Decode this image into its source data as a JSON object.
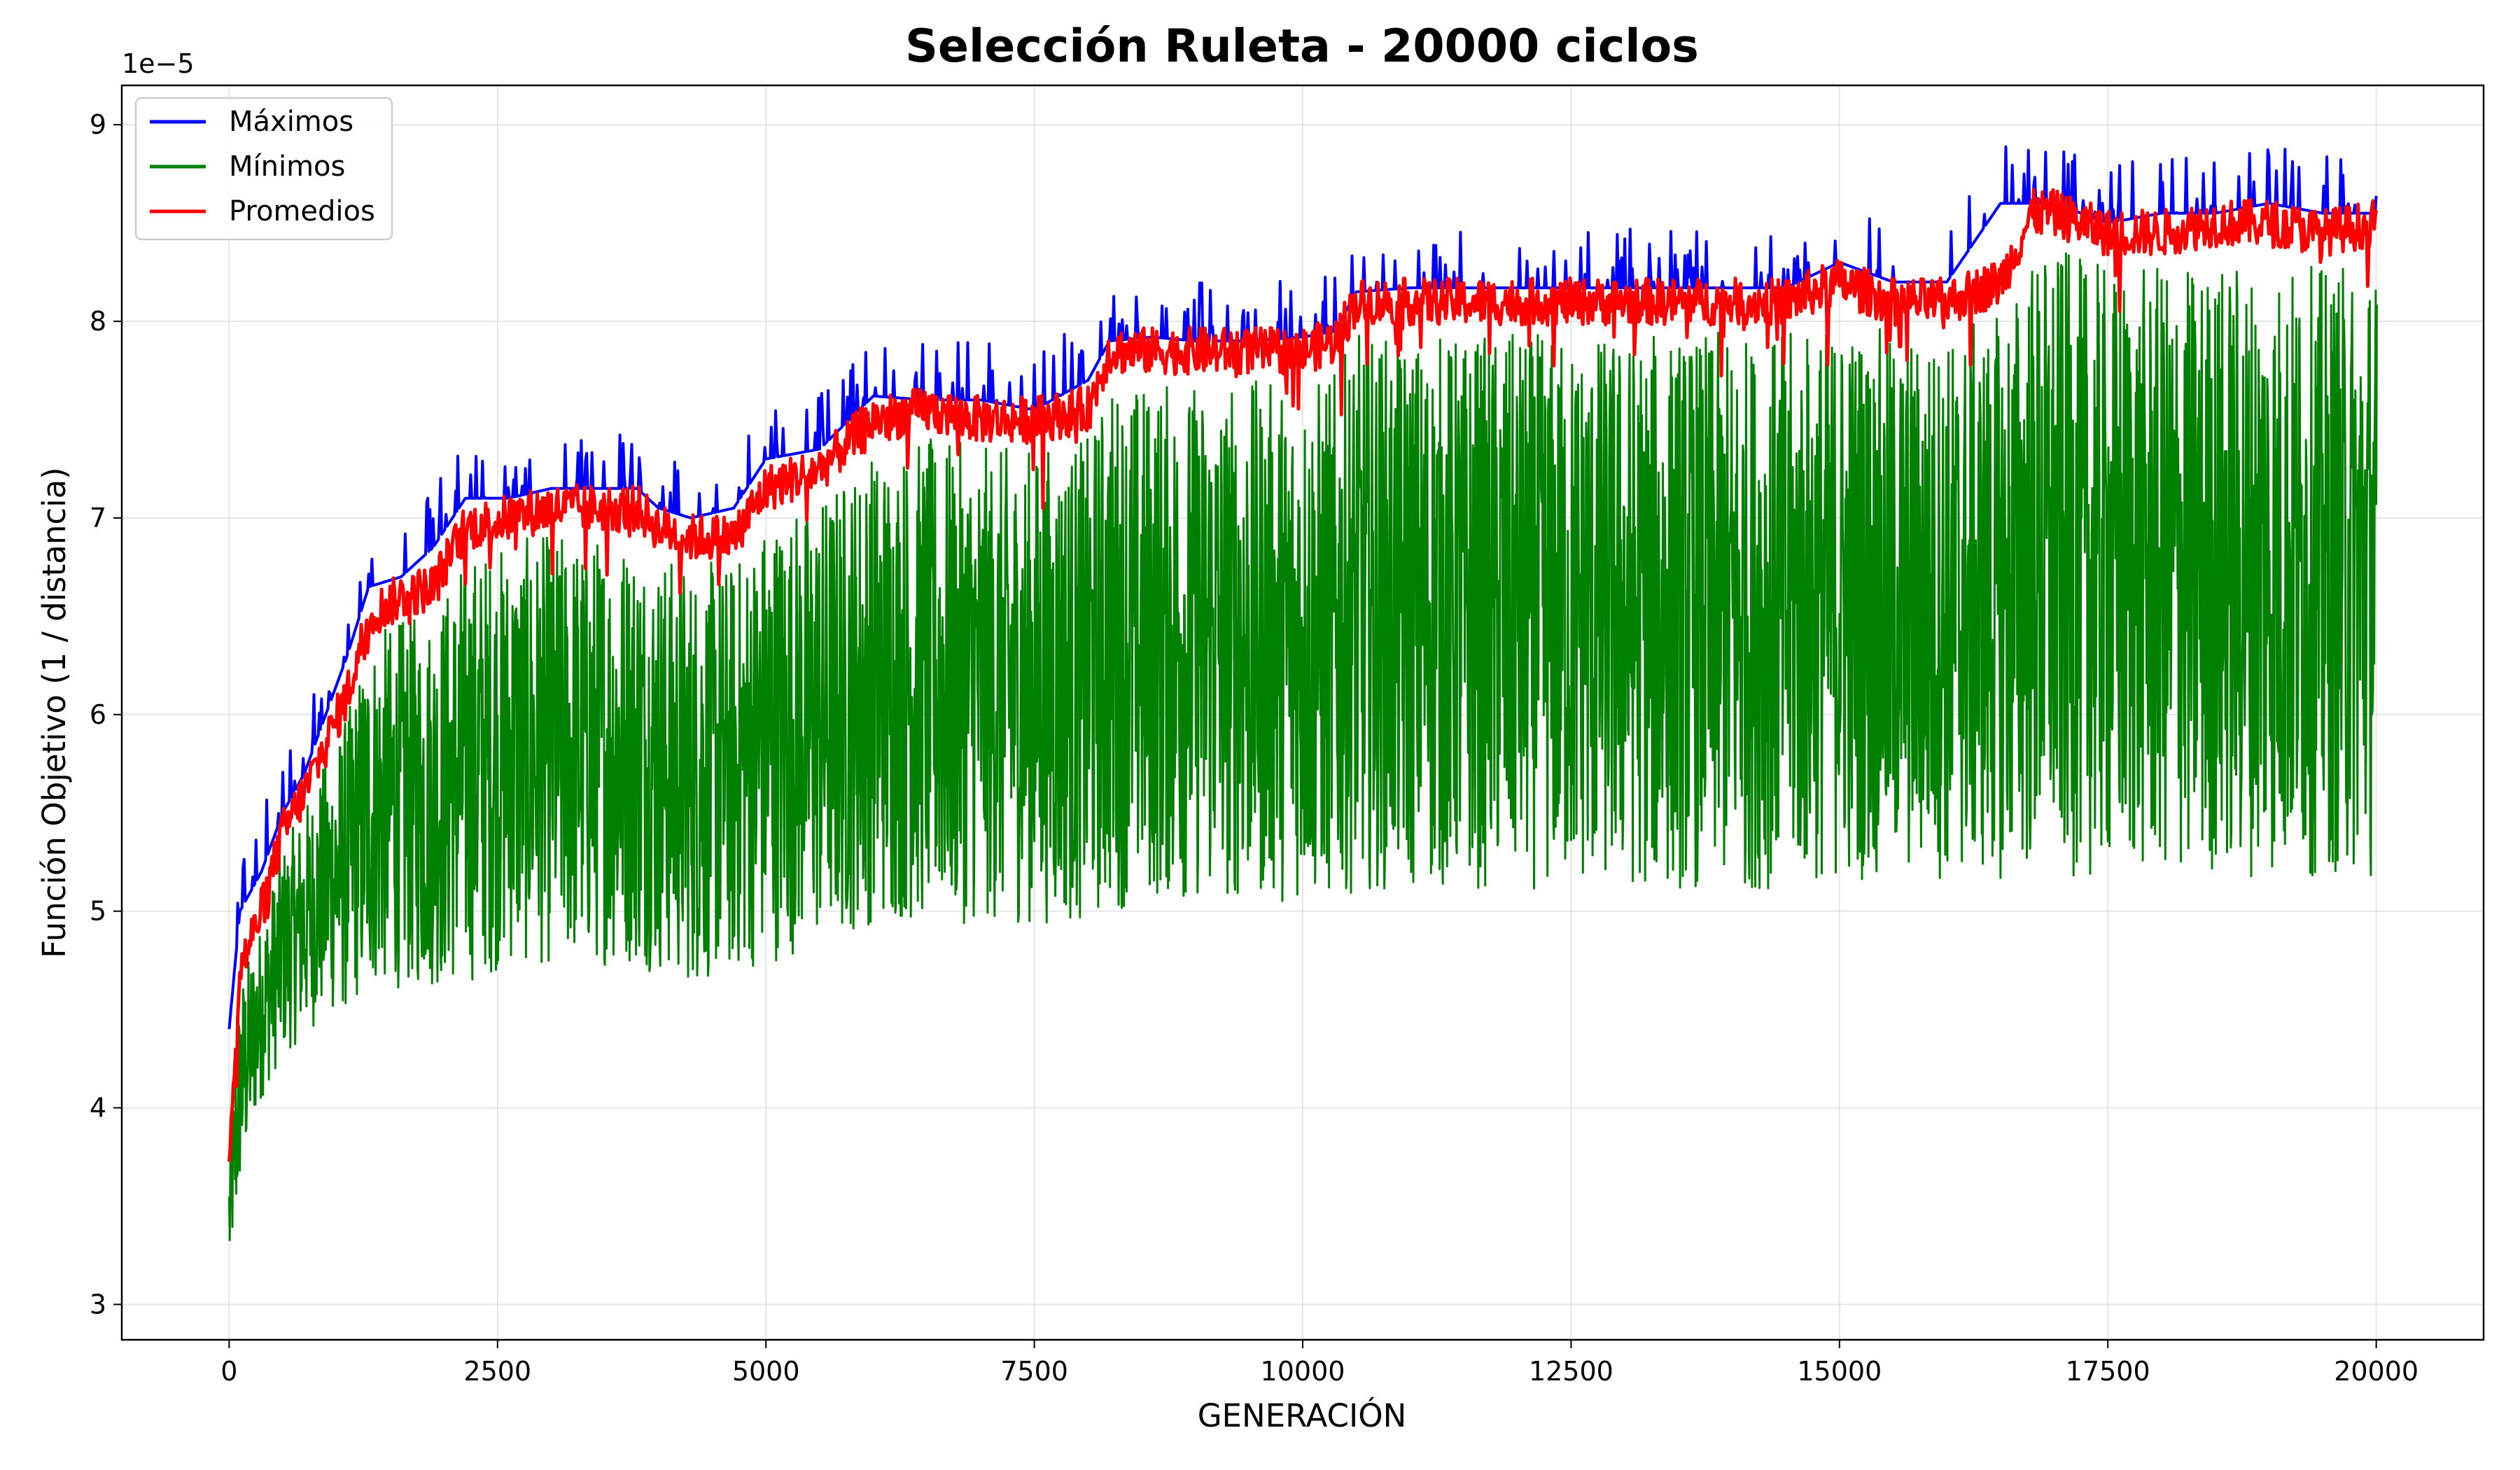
{
  "chart_data": {
    "type": "line",
    "title": "Selección Ruleta - 20000 ciclos",
    "xlabel": "GENERACIÓN",
    "ylabel": "Función Objetivo (1 / distancia)",
    "y_offset_text": "1e−5",
    "y_scale_factor": 1e-05,
    "xlim": [
      -1000,
      21000
    ],
    "ylim": [
      2.82,
      9.2
    ],
    "xticks": [
      0,
      2500,
      5000,
      7500,
      10000,
      12500,
      15000,
      17500,
      20000
    ],
    "xtick_labels": [
      "0",
      "2500",
      "5000",
      "7500",
      "10000",
      "12500",
      "15000",
      "17500",
      "20000"
    ],
    "yticks": [
      3,
      4,
      5,
      6,
      7,
      8,
      9
    ],
    "ytick_labels": [
      "3",
      "4",
      "5",
      "6",
      "7",
      "8",
      "9"
    ],
    "grid": true,
    "legend_position": "top-left",
    "series": [
      {
        "name": "Máximos",
        "color": "#0000ff",
        "x": [
          0,
          100,
          200,
          300,
          500,
          700,
          900,
          1100,
          1300,
          1600,
          1900,
          2200,
          2600,
          3000,
          3400,
          3800,
          4000,
          4300,
          4700,
          5000,
          5500,
          6000,
          6500,
          7000,
          7500,
          8000,
          8200,
          8600,
          9000,
          9500,
          10000,
          10300,
          10500,
          11000,
          11500,
          12000,
          12500,
          13000,
          13500,
          14000,
          14500,
          15000,
          15500,
          16000,
          16500,
          16800,
          17000,
          17500,
          18000,
          18500,
          19000,
          19500,
          20000
        ],
        "values": [
          4.4,
          5.0,
          5.1,
          5.2,
          5.5,
          5.7,
          6.0,
          6.3,
          6.65,
          6.7,
          6.85,
          7.1,
          7.1,
          7.15,
          7.15,
          7.15,
          7.05,
          7.0,
          7.05,
          7.3,
          7.35,
          7.62,
          7.6,
          7.6,
          7.55,
          7.7,
          7.9,
          7.92,
          7.9,
          7.9,
          7.92,
          7.95,
          8.15,
          8.17,
          8.17,
          8.17,
          8.17,
          8.17,
          8.17,
          8.17,
          8.17,
          8.3,
          8.2,
          8.2,
          8.6,
          8.6,
          8.6,
          8.5,
          8.55,
          8.55,
          8.6,
          8.55,
          8.55
        ]
      },
      {
        "name": "Mínimos",
        "color": "#008000",
        "x": [
          0,
          100,
          200,
          300,
          500,
          700,
          900,
          1100,
          1300,
          1600,
          1900,
          2200,
          2600,
          3000,
          3400,
          3800,
          4000,
          4300,
          4700,
          5000,
          5500,
          6000,
          6500,
          7000,
          7500,
          8000,
          8200,
          8600,
          9000,
          9500,
          10000,
          10300,
          10500,
          11000,
          11500,
          12000,
          12500,
          13000,
          13500,
          14000,
          14500,
          15000,
          15500,
          16000,
          16500,
          16800,
          17000,
          17500,
          18000,
          18500,
          19000,
          19500,
          20000
        ],
        "values": [
          3.1,
          3.5,
          3.8,
          4.0,
          4.2,
          4.3,
          4.4,
          4.4,
          4.5,
          4.5,
          4.5,
          4.5,
          4.6,
          4.6,
          4.6,
          4.6,
          4.55,
          4.5,
          4.55,
          4.6,
          4.7,
          4.8,
          4.8,
          4.8,
          4.8,
          4.8,
          4.85,
          4.9,
          4.9,
          4.9,
          4.9,
          4.9,
          4.95,
          4.95,
          4.95,
          4.95,
          4.95,
          4.95,
          4.95,
          4.95,
          4.95,
          5.0,
          5.0,
          5.0,
          5.0,
          5.0,
          5.0,
          5.0,
          5.0,
          5.0,
          5.0,
          5.0,
          5.0
        ]
      },
      {
        "name": "Promedios",
        "color": "#ff0000",
        "x": [
          0,
          100,
          200,
          300,
          500,
          700,
          900,
          1100,
          1300,
          1600,
          1900,
          2200,
          2600,
          3000,
          3400,
          3800,
          4000,
          4300,
          4700,
          5000,
          5500,
          6000,
          6500,
          7000,
          7500,
          8000,
          8200,
          8600,
          9000,
          9500,
          10000,
          10300,
          10500,
          11000,
          11500,
          12000,
          12500,
          13000,
          13500,
          14000,
          14500,
          15000,
          15500,
          16000,
          16500,
          16800,
          17000,
          17500,
          18000,
          18500,
          19000,
          19500,
          20000
        ],
        "values": [
          3.8,
          4.7,
          4.85,
          5.0,
          5.4,
          5.6,
          5.85,
          6.1,
          6.5,
          6.6,
          6.65,
          6.95,
          7.0,
          7.05,
          7.05,
          7.05,
          6.95,
          6.9,
          6.9,
          7.15,
          7.25,
          7.5,
          7.55,
          7.5,
          7.5,
          7.55,
          7.85,
          7.85,
          7.85,
          7.85,
          7.85,
          7.9,
          8.1,
          8.1,
          8.1,
          8.1,
          8.1,
          8.1,
          8.1,
          8.1,
          8.1,
          8.2,
          8.1,
          8.1,
          8.2,
          8.55,
          8.55,
          8.45,
          8.45,
          8.5,
          8.5,
          8.45,
          8.5
        ]
      }
    ],
    "fluctuation": {
      "Máximos": {
        "spike_up": 0.3
      },
      "Mínimos": {
        "fill_to_series": "Promedios"
      },
      "Promedios": {
        "jitter": 0.12
      }
    }
  }
}
